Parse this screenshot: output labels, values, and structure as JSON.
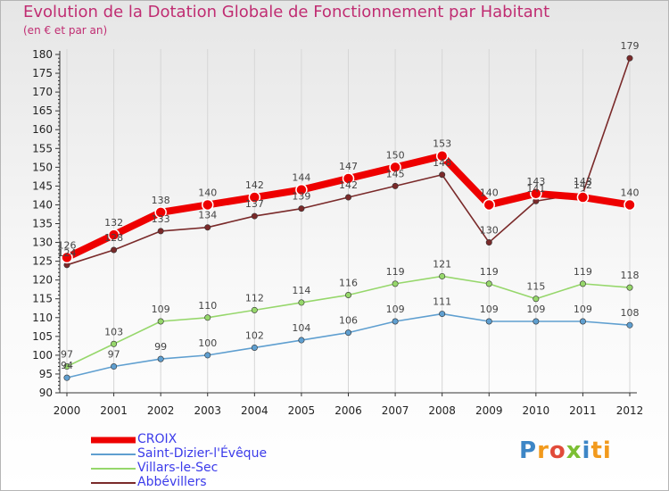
{
  "title": "Evolution de la Dotation Globale de Fonctionnement par Habitant",
  "subtitle": "(en € et par an)",
  "logo": [
    "P",
    "r",
    "o",
    "x",
    "i",
    "ti"
  ],
  "colors": {
    "title": "#c02d72",
    "axis_text": "#222222",
    "legend_text": "#3b3bea"
  },
  "chart_data": {
    "type": "line",
    "title": "Evolution de la Dotation Globale de Fonctionnement par Habitant",
    "subtitle": "(en € et par an)",
    "xlabel": "",
    "ylabel": "",
    "x": [
      "2000",
      "2001",
      "2002",
      "2003",
      "2004",
      "2005",
      "2006",
      "2007",
      "2008",
      "2009",
      "2010",
      "2011",
      "2012"
    ],
    "ylim": [
      90,
      180
    ],
    "yticks": [
      90,
      95,
      100,
      105,
      110,
      115,
      120,
      125,
      130,
      135,
      140,
      145,
      150,
      155,
      160,
      165,
      170,
      175,
      180
    ],
    "legend_position": "bottom-left",
    "series": [
      {
        "name": "CROIX",
        "color": "#ee0000",
        "values": [
          126,
          132,
          138,
          140,
          142,
          144,
          147,
          150,
          153,
          140,
          143,
          142,
          140
        ]
      },
      {
        "name": "Saint-Dizier-l'Évêque",
        "color": "#5f9fd0",
        "values": [
          94,
          97,
          99,
          100,
          102,
          104,
          106,
          109,
          111,
          109,
          109,
          109,
          108
        ]
      },
      {
        "name": "Villars-le-Sec",
        "color": "#96d76b",
        "values": [
          97,
          103,
          109,
          110,
          112,
          114,
          116,
          119,
          121,
          119,
          115,
          119,
          118
        ]
      },
      {
        "name": "Abbévillers",
        "color": "#7a2a2a",
        "values": [
          124,
          128,
          133,
          134,
          137,
          139,
          142,
          145,
          148,
          130,
          141,
          143,
          179
        ]
      }
    ]
  }
}
